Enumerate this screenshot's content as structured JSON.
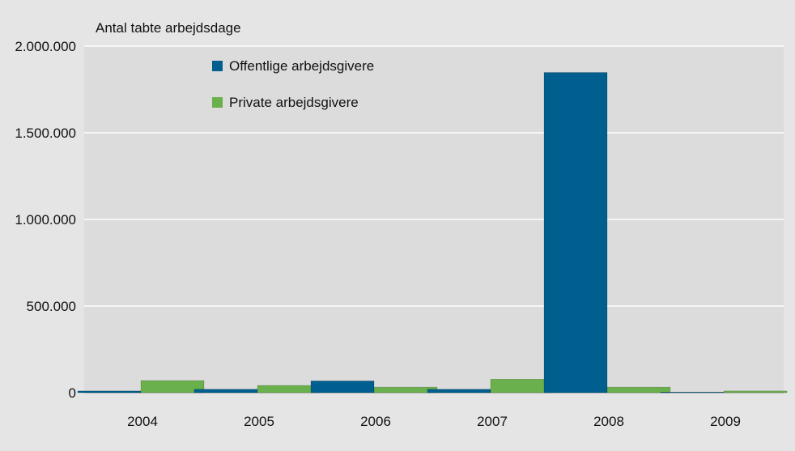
{
  "chart_data": {
    "type": "bar",
    "title": "",
    "ylabel": "Antal tabte arbejdsdage",
    "xlabel": "",
    "categories": [
      "2004",
      "2005",
      "2006",
      "2007",
      "2008",
      "2009"
    ],
    "series": [
      {
        "name": "Offentlige arbejdsgivere",
        "color": "#005f8e",
        "values": [
          10000,
          20000,
          68000,
          20000,
          1848000,
          1000
        ]
      },
      {
        "name": "Private arbejdsgivere",
        "color": "#6ab04c",
        "values": [
          70000,
          42000,
          32000,
          78000,
          32000,
          10000
        ]
      }
    ],
    "ylim": [
      0,
      2000000
    ],
    "yticks": [
      0,
      500000,
      1000000,
      1500000,
      2000000
    ],
    "ytick_labels": [
      "0",
      "500.000",
      "1.000.000",
      "1.500.000",
      "2.000.000"
    ],
    "grid": true,
    "legend_position": "top-left",
    "plot_background": "#dcdcdc",
    "gridline_color": "#ffffff"
  }
}
